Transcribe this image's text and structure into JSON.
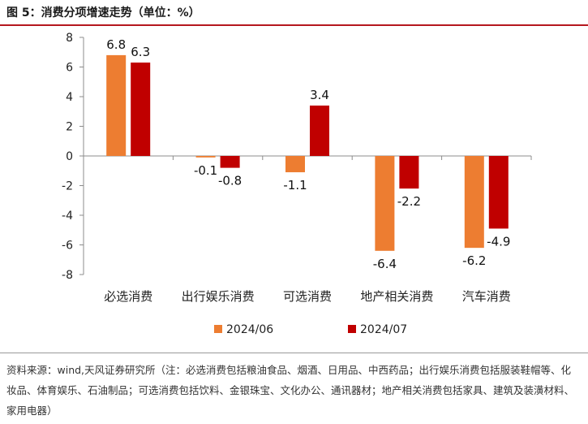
{
  "title": "图 5：消费分项增速走势（单位：%）",
  "source_note": "资料来源：wind,天风证券研究所（注：必选消费包括粮油食品、烟酒、日用品、中西药品；出行娱乐消费包括服装鞋帽等、化妆品、体育娱乐、石油制品；可选消费包括饮料、金银珠宝、文化办公、通讯器材；地产相关消费包括家具、建筑及装潢材料、家用电器）",
  "colors": {
    "series_1": "#ed7d31",
    "series_2": "#c00000",
    "accent": "#b5171e"
  },
  "chart_data": {
    "type": "bar",
    "title": "",
    "xlabel": "",
    "ylabel": "",
    "categories": [
      "必选消费",
      "出行娱乐消费",
      "可选消费",
      "地产相关消费",
      "汽车消费"
    ],
    "series": [
      {
        "name": "2024/06",
        "values": [
          6.8,
          -0.1,
          -1.1,
          -6.4,
          -6.2
        ]
      },
      {
        "name": "2024/07",
        "values": [
          6.3,
          -0.8,
          3.4,
          -2.2,
          -4.9
        ]
      }
    ],
    "ylim": [
      -8,
      8
    ],
    "yticks": [
      -8,
      -6,
      -4,
      -2,
      0,
      2,
      4,
      6,
      8
    ],
    "grid": false,
    "legend_position": "bottom",
    "data_labels": true
  }
}
